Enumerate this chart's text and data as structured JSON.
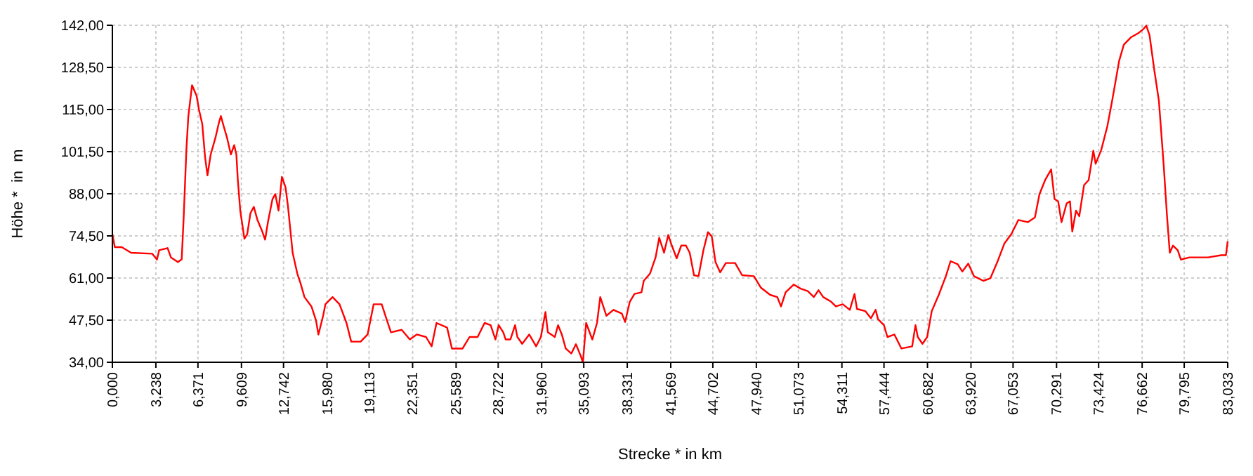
{
  "chart_data": {
    "type": "line",
    "xlabel": "Strecke *  in  km",
    "ylabel": "Höhe *  in  m",
    "grid": true,
    "marker": "none",
    "line_style": "solid",
    "xlim": [
      0,
      83.033
    ],
    "ylim": [
      34,
      142
    ],
    "xticks": [
      {
        "value": 0,
        "label": "0,000"
      },
      {
        "value": 3.238,
        "label": "3,238"
      },
      {
        "value": 6.371,
        "label": "6,371"
      },
      {
        "value": 9.609,
        "label": "9,609"
      },
      {
        "value": 12.742,
        "label": "12,742"
      },
      {
        "value": 15.98,
        "label": "15,980"
      },
      {
        "value": 19.113,
        "label": "19,113"
      },
      {
        "value": 22.351,
        "label": "22,351"
      },
      {
        "value": 25.589,
        "label": "25,589"
      },
      {
        "value": 28.722,
        "label": "28,722"
      },
      {
        "value": 31.96,
        "label": "31,960"
      },
      {
        "value": 35.093,
        "label": "35,093"
      },
      {
        "value": 38.331,
        "label": "38,331"
      },
      {
        "value": 41.569,
        "label": "41,569"
      },
      {
        "value": 44.702,
        "label": "44,702"
      },
      {
        "value": 47.94,
        "label": "47,940"
      },
      {
        "value": 51.073,
        "label": "51,073"
      },
      {
        "value": 54.311,
        "label": "54,311"
      },
      {
        "value": 57.444,
        "label": "57,444"
      },
      {
        "value": 60.682,
        "label": "60,682"
      },
      {
        "value": 63.92,
        "label": "63,920"
      },
      {
        "value": 67.053,
        "label": "67,053"
      },
      {
        "value": 70.291,
        "label": "70,291"
      },
      {
        "value": 73.424,
        "label": "73,424"
      },
      {
        "value": 76.662,
        "label": "76,662"
      },
      {
        "value": 79.795,
        "label": "79,795"
      },
      {
        "value": 83.033,
        "label": "83,033"
      }
    ],
    "yticks": [
      {
        "value": 34,
        "label": "34,00"
      },
      {
        "value": 47.5,
        "label": "47,50"
      },
      {
        "value": 61,
        "label": "61,00"
      },
      {
        "value": 74.5,
        "label": "74,50"
      },
      {
        "value": 88,
        "label": "88,00"
      },
      {
        "value": 101.5,
        "label": "101,50"
      },
      {
        "value": 115,
        "label": "115,00"
      },
      {
        "value": 128.5,
        "label": "128,50"
      },
      {
        "value": 142,
        "label": "142,00"
      }
    ],
    "series": [
      {
        "color": "#ff0000",
        "x": [
          0,
          0.18,
          0.7,
          1.39,
          2.96,
          3.32,
          3.48,
          4.11,
          4.36,
          4.88,
          5.16,
          5.3,
          5.51,
          5.65,
          5.93,
          6.27,
          6.45,
          6.69,
          6.9,
          7.08,
          7.32,
          7.67,
          7.95,
          8.08,
          8.29,
          8.54,
          8.82,
          9.07,
          9.23,
          9.34,
          9.52,
          9.83,
          10.04,
          10.28,
          10.53,
          10.8,
          11.16,
          11.37,
          11.58,
          11.92,
          12.13,
          12.37,
          12.62,
          12.89,
          13.07,
          13.42,
          13.77,
          14.01,
          14.3,
          14.82,
          15.16,
          15.34,
          15.69,
          15.86,
          16.39,
          16.91,
          17.43,
          17.78,
          18.48,
          19,
          19.45,
          20.05,
          20.39,
          20.74,
          21.54,
          22.14,
          22.66,
          23.35,
          23.77,
          24.13,
          24.92,
          25.28,
          26.07,
          26.59,
          27.19,
          27.71,
          28.16,
          28.52,
          28.76,
          29.1,
          29.28,
          29.63,
          29.98,
          30.15,
          30.51,
          31.03,
          31.55,
          31.9,
          32.24,
          32.42,
          32.94,
          33.18,
          33.46,
          33.75,
          34.17,
          34.51,
          34.86,
          35.03,
          35.27,
          35.73,
          36.08,
          36.32,
          36.78,
          37.3,
          37.93,
          38.17,
          38.52,
          38.87,
          39.39,
          39.56,
          40.02,
          40.44,
          40.71,
          41.07,
          41.38,
          41.65,
          42.01,
          42.35,
          42.7,
          42.98,
          43.3,
          43.64,
          44,
          44.34,
          44.62,
          44.9,
          45.25,
          45.67,
          46.36,
          46.88,
          47.76,
          48.28,
          48.97,
          49.5,
          49.78,
          50.12,
          50.72,
          51.24,
          51.77,
          52.22,
          52.57,
          52.92,
          53.51,
          53.86,
          54.38,
          54.9,
          55.25,
          55.43,
          56.05,
          56.47,
          56.82,
          57,
          57.44,
          57.7,
          58.22,
          58.74,
          59.54,
          59.79,
          59.96,
          60.31,
          60.66,
          61,
          61.52,
          62.05,
          62.4,
          62.93,
          63.27,
          63.72,
          64.14,
          64.84,
          65.36,
          65.88,
          66.41,
          66.93,
          67.45,
          68.15,
          68.68,
          69.02,
          69.44,
          69.89,
          70.14,
          70.41,
          70.66,
          71.04,
          71.29,
          71.46,
          71.74,
          71.98,
          72.34,
          72.68,
          73.03,
          73.2,
          73.62,
          74.07,
          74.43,
          74.95,
          75.3,
          75.82,
          76.42,
          76.76,
          76.97,
          77.21,
          77.57,
          77.91,
          78.26,
          78.51,
          78.72,
          78.96,
          79.31,
          79.55,
          80.18,
          81.57,
          82.54,
          82.9,
          83.03
        ],
        "values": [
          75.1,
          70.9,
          70.9,
          69.1,
          68.8,
          66.9,
          69.9,
          70.6,
          67.6,
          66.1,
          67,
          79.6,
          102.1,
          112.6,
          122.8,
          119.4,
          114.9,
          110.4,
          99.8,
          93.9,
          100.6,
          105.9,
          111.1,
          112.9,
          109.6,
          105.9,
          100.6,
          103.6,
          100.6,
          92.4,
          82.6,
          73.6,
          75.1,
          81.8,
          83.8,
          79.6,
          75.9,
          73.3,
          78.9,
          86.3,
          87.9,
          82.6,
          93.4,
          90.1,
          84.1,
          69.1,
          62.4,
          59.3,
          54.9,
          51.9,
          47.4,
          42.9,
          48.9,
          52.6,
          54.9,
          52.6,
          46.6,
          40.6,
          40.6,
          42.9,
          52.6,
          52.6,
          48.1,
          43.6,
          44.4,
          41.3,
          42.9,
          42.1,
          39.1,
          46.6,
          45.1,
          38.4,
          38.4,
          42.1,
          42.1,
          46.6,
          45.9,
          41.3,
          45.9,
          43.6,
          41.3,
          41.3,
          45.9,
          42.1,
          39.9,
          42.9,
          39.1,
          42.1,
          50.1,
          43.6,
          42.1,
          45.9,
          42.9,
          38.4,
          36.8,
          39.8,
          36.1,
          34,
          46.6,
          41.3,
          46.6,
          54.9,
          48.9,
          50.8,
          49.6,
          46.9,
          53.4,
          55.9,
          56.4,
          60.1,
          62.4,
          67.6,
          73.9,
          69.1,
          74.8,
          71.4,
          67.3,
          71.4,
          71.4,
          69.1,
          61.9,
          61.6,
          69.9,
          75.7,
          74.4,
          66.1,
          62.8,
          65.8,
          65.8,
          61.9,
          61.6,
          57.9,
          55.6,
          54.9,
          51.9,
          56.4,
          58.9,
          57.6,
          56.8,
          54.9,
          57.1,
          54.9,
          53.4,
          51.9,
          52.6,
          50.8,
          55.9,
          51.1,
          50.4,
          48.1,
          50.8,
          47.8,
          45.9,
          42.1,
          42.9,
          38.4,
          39.1,
          45.9,
          42.1,
          39.9,
          42.1,
          50.4,
          55.6,
          61.6,
          66.4,
          65.4,
          63.1,
          65.6,
          61.6,
          60.1,
          60.9,
          66.1,
          72.1,
          75.1,
          79.6,
          78.9,
          80.4,
          87.9,
          92.4,
          95.8,
          86.3,
          85.6,
          78.9,
          84.9,
          85.6,
          75.9,
          82.6,
          80.8,
          90.8,
          92.4,
          101.8,
          97.6,
          102.1,
          109.6,
          117.8,
          130.6,
          135.8,
          138.1,
          139.6,
          140.8,
          141.9,
          138.9,
          127.6,
          117.8,
          97.6,
          81.1,
          69.1,
          71.4,
          69.9,
          66.9,
          67.6,
          67.6,
          68.3,
          68.3,
          72.8
        ]
      }
    ]
  }
}
